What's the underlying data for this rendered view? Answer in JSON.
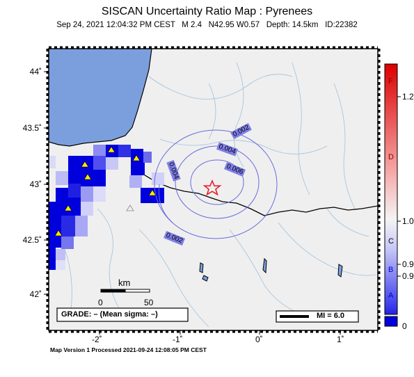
{
  "title": "SISCAN Uncertainty Ratio Map : Pyrenees",
  "subtitle": "Sep 24, 2021 12:04:32 PM CEST   M 2.4   N42.95 W0.57   Depth: 14.5km   ID:22382",
  "footer": "Map Version 1 Processed 2021-09-24 12:08:05 PM CEST",
  "map": {
    "x_ticks": [
      "-2˚",
      "-1˚",
      "0˚",
      "1˚"
    ],
    "y_ticks": [
      "44˚",
      "43.5˚",
      "43˚",
      "42.5˚",
      "42˚"
    ],
    "contour_labels": [
      "0.002",
      "0.004",
      "0.004",
      "0.006",
      "0.002"
    ],
    "scale_unit": "km",
    "scale_start": "0",
    "scale_end": "50",
    "grade_text": "GRADE: – (Mean sigma: –)",
    "mi_text": "MI = 6.0",
    "colors": {
      "sea": "#7b9fdc",
      "land": "#efefef",
      "cell_blue": "#0000dd",
      "epicenter": "#e8202a"
    }
  },
  "colorbar": {
    "grade_letters": [
      "F",
      "D",
      "C",
      "B",
      "A"
    ],
    "ratio_labels": [
      "1.2",
      "1.0",
      "0.9",
      "0.9",
      "0"
    ]
  }
}
